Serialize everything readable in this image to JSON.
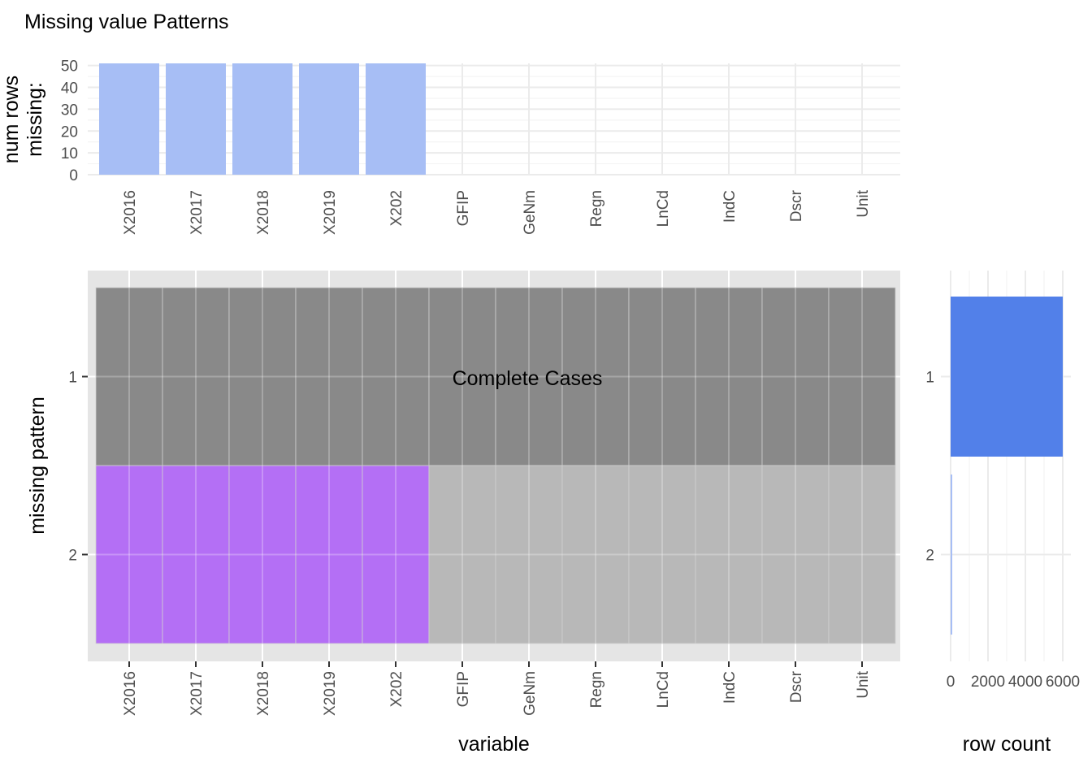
{
  "title": "Missing value Patterns",
  "colors": {
    "missing_bar": "#a7bef5",
    "row_count_bar_1": "#5280e9",
    "row_count_bar_2": "#a7bef5",
    "complete_tile": "#898989",
    "missing_tile": "#b46ff5",
    "observed_tile": "#b8b8b8",
    "panel_bg": "#e5e5e5",
    "grid_light": "#ebebeb"
  },
  "chart_data": [
    {
      "id": "top",
      "type": "bar",
      "ylabel": "num rows\nmissing:",
      "xlabel": "",
      "categories": [
        "X2016",
        "X2017",
        "X2018",
        "X2019",
        "X202",
        "GFIP",
        "GeNm",
        "Regn",
        "LnCd",
        "IndC",
        "Dscr",
        "Unit"
      ],
      "values": [
        51,
        51,
        51,
        51,
        51,
        0,
        0,
        0,
        0,
        0,
        0,
        0
      ],
      "yticks": [
        0,
        10,
        20,
        30,
        40,
        50
      ],
      "ylim": [
        0,
        51
      ],
      "grid": true
    },
    {
      "id": "main",
      "type": "heatmap",
      "xlabel": "variable",
      "ylabel": "missing pattern",
      "x": [
        "X2016",
        "X2017",
        "X2018",
        "X2019",
        "X202",
        "GFIP",
        "GeNm",
        "Regn",
        "LnCd",
        "IndC",
        "Dscr",
        "Unit"
      ],
      "y": [
        "1",
        "2"
      ],
      "patterns": [
        {
          "pattern": "1",
          "missing": [
            0,
            0,
            0,
            0,
            0,
            0,
            0,
            0,
            0,
            0,
            0,
            0
          ],
          "complete": true
        },
        {
          "pattern": "2",
          "missing": [
            1,
            1,
            1,
            1,
            1,
            0,
            0,
            0,
            0,
            0,
            0,
            0
          ],
          "complete": false
        }
      ],
      "annotation": "Complete Cases"
    },
    {
      "id": "side",
      "type": "bar",
      "orientation": "horizontal",
      "xlabel": "row count",
      "ylabel": "",
      "categories": [
        "1",
        "2"
      ],
      "values": [
        6000,
        51
      ],
      "xticks": [
        0,
        2000,
        4000,
        6000
      ],
      "xtick_labels": [
        "0",
        "2000",
        "4000",
        "6000"
      ],
      "xlim": [
        0,
        6000
      ]
    }
  ]
}
